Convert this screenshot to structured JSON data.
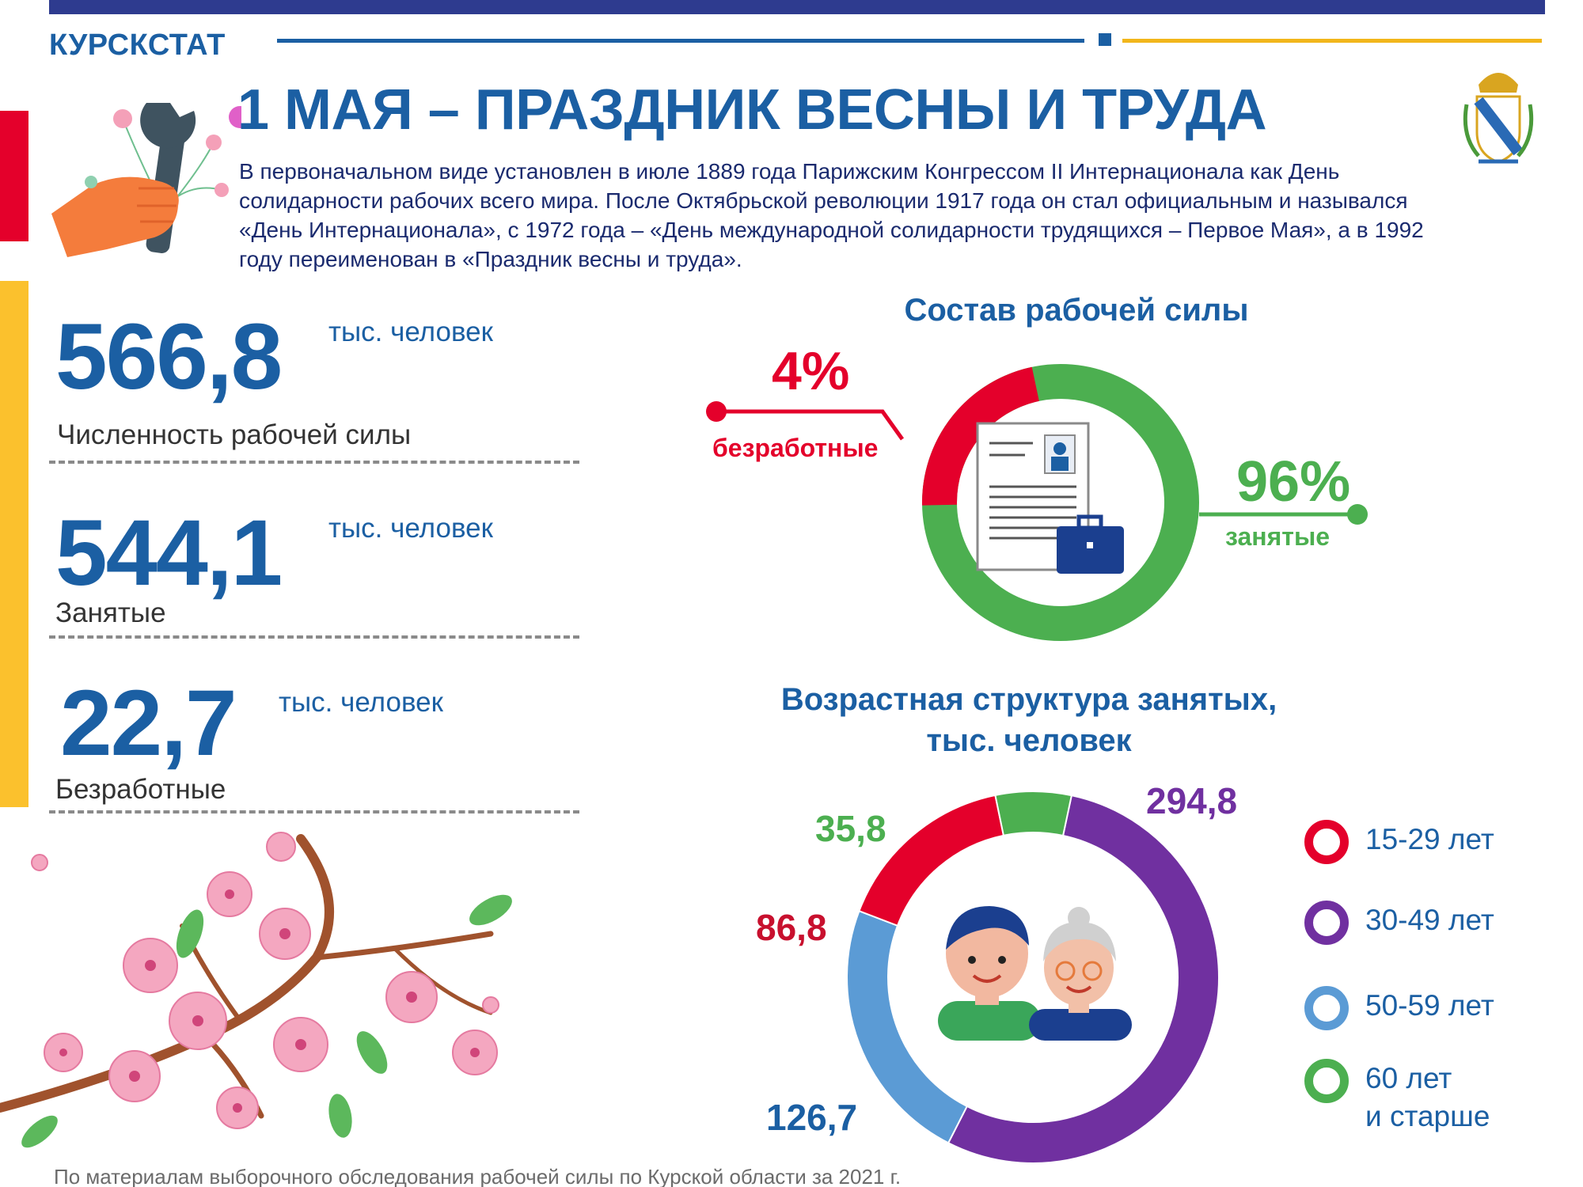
{
  "header": {
    "brand": "КУРСКСТАТ",
    "title": "1 МАЯ – ПРАЗДНИК ВЕСНЫ И ТРУДА",
    "intro": "В первоначальном виде установлен в июле 1889 года Парижским Конгрессом II Интернационала как День солидарности рабочих всего мира. После Октябрьской революции 1917 года он стал официальным и назывался «День Интернационала», с 1972 года – «День международной солидарности трудящихся – Первое Мая», а в 1992 году переименован в «Праздник весны и труда»."
  },
  "stats": [
    {
      "value": "566,8",
      "unit": "тыс. человек",
      "label": "Численность рабочей силы"
    },
    {
      "value": "544,1",
      "unit": "тыс. человек",
      "label": "Занятые"
    },
    {
      "value": "22,7",
      "unit": "тыс. человек",
      "label": "Безработные"
    }
  ],
  "workforce": {
    "title": "Состав рабочей силы",
    "unemployed_pct": "4%",
    "unemployed_label": "безработные",
    "employed_pct": "96%",
    "employed_label": "занятые",
    "shares": [
      4,
      96
    ],
    "colors": {
      "unemployed": "#e4002b",
      "employed": "#4caf50"
    }
  },
  "age_structure": {
    "title_line1": "Возрастная структура  занятых,",
    "title_line2": "тыс. человек",
    "values": {
      "v15_29": "86,8",
      "v30_49": "294,8",
      "v50_59": "126,7",
      "v60": "35,8"
    },
    "numeric": [
      86.8,
      294.8,
      126.7,
      35.8
    ],
    "colors": {
      "c15_29": "#e4002b",
      "c30_49": "#7030a0",
      "c50_59": "#5b9bd5",
      "c60": "#4caf50"
    },
    "legend": {
      "l15_29": "15-29 лет",
      "l30_49": "30-49 лет",
      "l50_59": "50-59 лет",
      "l60_line1": "60 лет",
      "l60_line2": "и старше"
    }
  },
  "footer": "По материалам выборочного обследования рабочей силы по Курской области за 2021 г."
}
